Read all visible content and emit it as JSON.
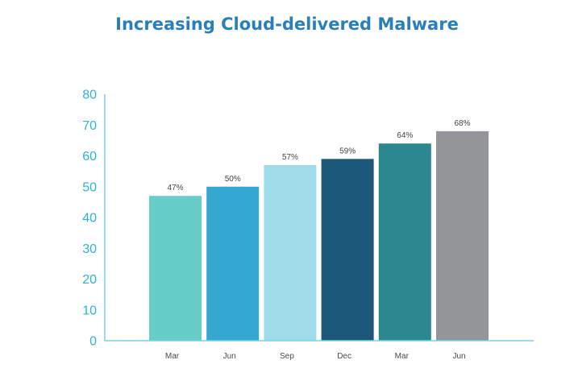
{
  "chart_data": {
    "type": "bar",
    "title": "Increasing Cloud-delivered Malware",
    "xlabel": "",
    "ylabel": "",
    "categories": [
      "Mar",
      "Jun",
      "Sep",
      "Dec",
      "Mar",
      "Jun"
    ],
    "values": [
      47,
      50,
      57,
      59,
      64,
      68
    ],
    "data_labels": [
      "47%",
      "50%",
      "57%",
      "59%",
      "64%",
      "68%"
    ],
    "bar_colors": [
      "#66cdc9",
      "#35a8d1",
      "#9ddce8",
      "#1b587a",
      "#2a888e",
      "#939598"
    ],
    "ylim": [
      0,
      80
    ],
    "yticks": [
      0,
      10,
      20,
      30,
      40,
      50,
      60,
      70,
      80
    ],
    "axis_color": "#7fd0e6",
    "grid": false,
    "legend": "none"
  }
}
